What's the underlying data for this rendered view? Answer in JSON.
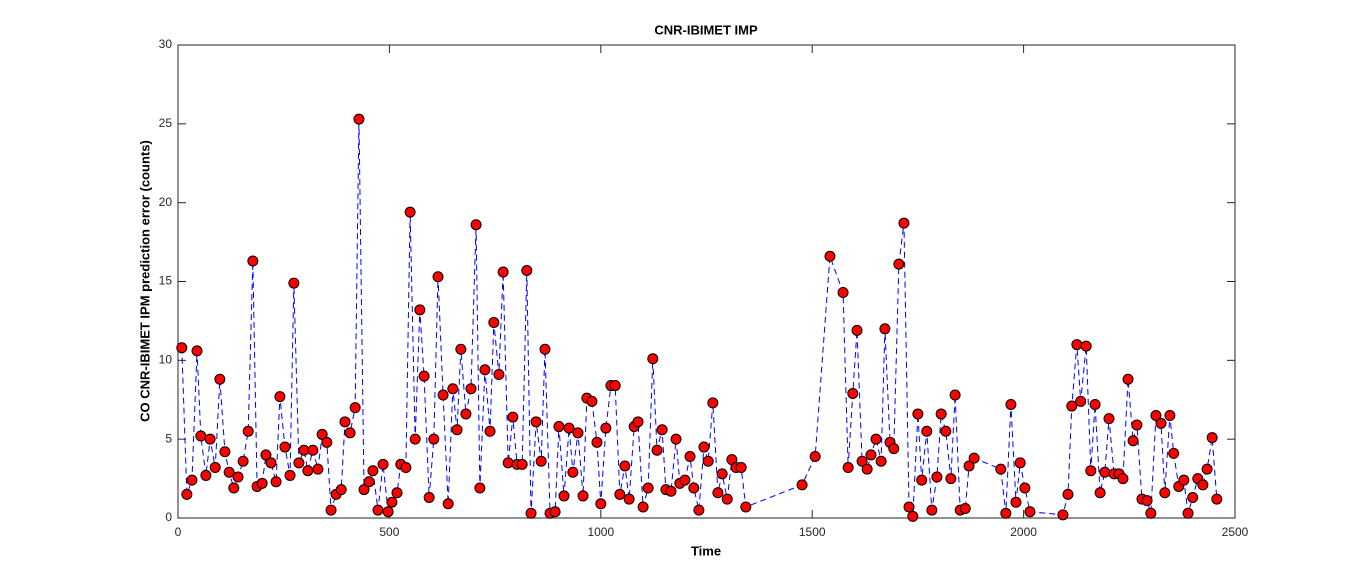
{
  "chart_data": {
    "type": "line",
    "title": "CNR-IBIMET IMP",
    "xlabel": "Time",
    "ylabel": "CO CNR-IBIMET IPM prediction error (counts)",
    "x": [
      9,
      21,
      33,
      45,
      54,
      66,
      76,
      88,
      99,
      111,
      121,
      132,
      142,
      154,
      166,
      177,
      187,
      199,
      208,
      220,
      232,
      241,
      253,
      265,
      274,
      286,
      298,
      307,
      319,
      331,
      341,
      352,
      362,
      374,
      386,
      395,
      407,
      419,
      428,
      440,
      452,
      461,
      473,
      485,
      497,
      506,
      518,
      527,
      539,
      549,
      561,
      572,
      582,
      594,
      605,
      615,
      627,
      639,
      650,
      660,
      669,
      681,
      693,
      705,
      714,
      726,
      738,
      747,
      759,
      769,
      781,
      792,
      802,
      814,
      825,
      835,
      847,
      859,
      868,
      880,
      892,
      901,
      913,
      925,
      934,
      946,
      958,
      967,
      979,
      991,
      1000,
      1012,
      1024,
      1034,
      1045,
      1057,
      1067,
      1079,
      1088,
      1100,
      1112,
      1123,
      1133,
      1145,
      1154,
      1166,
      1178,
      1187,
      1199,
      1211,
      1220,
      1232,
      1244,
      1254,
      1265,
      1277,
      1287,
      1299,
      1310,
      1320,
      1332,
      1343,
      1476,
      1507,
      1542,
      1573,
      1585,
      1596,
      1606,
      1618,
      1630,
      1639,
      1651,
      1663,
      1672,
      1684,
      1693,
      1705,
      1717,
      1729,
      1738,
      1750,
      1759,
      1771,
      1783,
      1795,
      1805,
      1816,
      1828,
      1838,
      1850,
      1862,
      1871,
      1883,
      1946,
      1958,
      1970,
      1982,
      1992,
      2003,
      2015,
      2093,
      2105,
      2114,
      2126,
      2135,
      2148,
      2159,
      2169,
      2181,
      2192,
      2202,
      2214,
      2226,
      2235,
      2247,
      2259,
      2268,
      2280,
      2292,
      2301,
      2313,
      2325,
      2334,
      2346,
      2355,
      2367,
      2379,
      2389,
      2400,
      2412,
      2424,
      2434,
      2446,
      2457
    ],
    "series": [
      {
        "color": "#0000ff",
        "marker_color": "#ff0000",
        "values": [
          10.8,
          1.5,
          2.4,
          10.6,
          5.2,
          2.7,
          5.0,
          3.2,
          8.8,
          4.2,
          2.9,
          1.9,
          2.6,
          3.6,
          5.5,
          16.3,
          2.0,
          2.2,
          4.0,
          3.5,
          2.3,
          7.7,
          4.5,
          2.7,
          14.9,
          3.5,
          4.3,
          3.0,
          4.3,
          3.1,
          5.3,
          4.8,
          0.5,
          1.5,
          1.8,
          6.1,
          5.4,
          7.0,
          25.3,
          1.8,
          2.3,
          3.0,
          0.5,
          3.4,
          0.4,
          1.0,
          1.6,
          3.4,
          3.2,
          19.4,
          5.0,
          13.2,
          9.0,
          1.3,
          5.0,
          15.3,
          7.8,
          0.9,
          8.2,
          5.6,
          10.7,
          6.6,
          8.2,
          18.6,
          1.9,
          9.4,
          5.5,
          12.4,
          9.1,
          15.6,
          3.5,
          6.4,
          3.4,
          3.4,
          15.7,
          0.3,
          6.1,
          3.6,
          10.7,
          0.3,
          0.4,
          5.8,
          1.4,
          5.7,
          2.9,
          5.4,
          1.4,
          7.6,
          7.4,
          4.8,
          0.9,
          5.7,
          8.4,
          8.4,
          1.5,
          3.3,
          1.2,
          5.8,
          6.1,
          0.7,
          1.9,
          10.1,
          4.3,
          5.6,
          1.8,
          1.7,
          5.0,
          2.2,
          2.4,
          3.9,
          1.9,
          0.5,
          4.5,
          3.6,
          7.3,
          1.6,
          2.8,
          1.2,
          3.7,
          3.2,
          3.2,
          0.7,
          2.1,
          3.9,
          16.6,
          14.3,
          3.2,
          7.9,
          11.9,
          3.6,
          3.1,
          4.0,
          5.0,
          3.6,
          12.0,
          4.8,
          4.4,
          16.1,
          18.7,
          0.7,
          0.1,
          6.6,
          2.4,
          5.5,
          0.5,
          2.6,
          6.6,
          5.5,
          2.5,
          7.8,
          0.5,
          0.6,
          3.3,
          3.8,
          3.1,
          0.3,
          7.2,
          1.0,
          3.5,
          1.9,
          0.4,
          0.2,
          1.5,
          7.1,
          11.0,
          7.4,
          10.9,
          3.0,
          7.2,
          1.6,
          2.9,
          6.3,
          2.8,
          2.8,
          2.5,
          8.8,
          4.9,
          5.9,
          1.2,
          1.1,
          0.3,
          6.5,
          6.0,
          1.6,
          6.5,
          4.1,
          2.0,
          2.4,
          0.3,
          1.3,
          2.5,
          2.1,
          3.1,
          5.1,
          1.2
        ]
      }
    ],
    "xlim": [
      0,
      2500
    ],
    "xticks": [
      0,
      500,
      1000,
      1500,
      2000,
      2500
    ],
    "ylim": [
      0,
      30
    ],
    "yticks": [
      0,
      5,
      10,
      15,
      20,
      25,
      30
    ]
  }
}
